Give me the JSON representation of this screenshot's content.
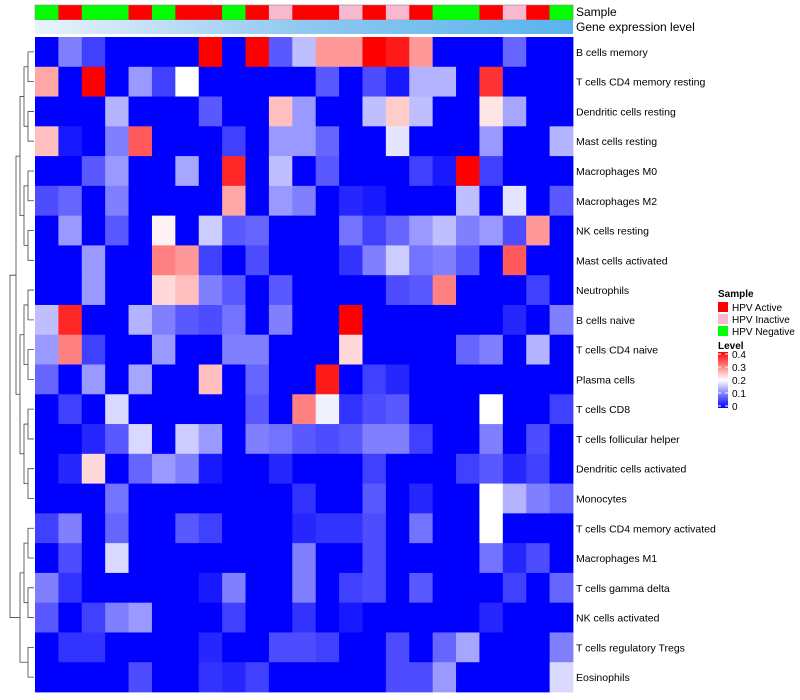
{
  "chart_data": {
    "type": "heatmap",
    "annotation_tracks": [
      {
        "label": "Sample",
        "column_groups": [
          "HPV Negative",
          "HPV Active",
          "HPV Negative",
          "HPV Negative",
          "HPV Active",
          "HPV Negative",
          "HPV Active",
          "HPV Active",
          "HPV Negative",
          "HPV Active",
          "HPV Inactive",
          "HPV Active",
          "HPV Active",
          "HPV Inactive",
          "HPV Active",
          "HPV Inactive",
          "HPV Active",
          "HPV Negative",
          "HPV Negative",
          "HPV Active",
          "HPV Inactive",
          "HPV Active",
          "HPV Negative"
        ]
      },
      {
        "label": "Gene expression level",
        "gradient": [
          "#eaf3fb",
          "#8fc8f0",
          "#58b4ee"
        ]
      }
    ],
    "rows": [
      "B cells memory",
      "T cells CD4 memory resting",
      "Dendritic cells resting",
      "Mast cells resting",
      "Macrophages M0",
      "Macrophages M2",
      "NK cells resting",
      "Mast cells activated",
      "Neutrophils",
      "B cells naive",
      "T cells CD4 naive",
      "Plasma cells",
      "T cells CD8",
      "T cells follicular helper",
      "Dendritic cells activated",
      "Monocytes",
      "T cells CD4 memory activated",
      "Macrophages M1",
      "T cells gamma delta",
      "NK cells activated",
      "T cells regulatory  Tregs",
      "Eosinophils"
    ],
    "values": [
      [
        0.0,
        0.1,
        0.05,
        0.0,
        0.0,
        0.0,
        0.0,
        0.4,
        0.0,
        0.4,
        0.07,
        0.15,
        0.28,
        0.28,
        0.4,
        0.38,
        0.28,
        0.0,
        0.0,
        0.0,
        0.08,
        0.0,
        0.0
      ],
      [
        0.27,
        0.0,
        0.4,
        0.0,
        0.12,
        0.05,
        0.2,
        0.0,
        0.0,
        0.0,
        0.0,
        0.0,
        0.07,
        0.0,
        0.06,
        0.02,
        0.14,
        0.14,
        0.0,
        0.36,
        0.0,
        0.0,
        0.0
      ],
      [
        0.0,
        0.0,
        0.0,
        0.14,
        0.0,
        0.0,
        0.0,
        0.07,
        0.0,
        0.0,
        0.25,
        0.12,
        0.0,
        0.0,
        0.15,
        0.24,
        0.15,
        0.0,
        0.0,
        0.22,
        0.13,
        0.0,
        0.0
      ],
      [
        0.25,
        0.02,
        0.0,
        0.1,
        0.33,
        0.0,
        0.0,
        0.0,
        0.05,
        0.0,
        0.12,
        0.12,
        0.08,
        0.0,
        0.0,
        0.18,
        0.0,
        0.0,
        0.0,
        0.12,
        0.0,
        0.0,
        0.14
      ],
      [
        0.0,
        0.0,
        0.07,
        0.12,
        0.0,
        0.0,
        0.13,
        0.0,
        0.37,
        0.0,
        0.15,
        0.0,
        0.07,
        0.0,
        0.0,
        0.0,
        0.05,
        0.02,
        0.4,
        0.05,
        0.0,
        0.0,
        0.0
      ],
      [
        0.06,
        0.08,
        0.0,
        0.1,
        0.0,
        0.0,
        0.0,
        0.0,
        0.27,
        0.0,
        0.12,
        0.1,
        0.0,
        0.03,
        0.02,
        0.0,
        0.0,
        0.0,
        0.15,
        0.0,
        0.18,
        0.0,
        0.07
      ],
      [
        0.0,
        0.12,
        0.0,
        0.07,
        0.0,
        0.21,
        0.0,
        0.16,
        0.07,
        0.08,
        0.0,
        0.0,
        0.0,
        0.09,
        0.05,
        0.08,
        0.12,
        0.15,
        0.1,
        0.12,
        0.06,
        0.28,
        0.0
      ],
      [
        0.0,
        0.0,
        0.12,
        0.0,
        0.0,
        0.3,
        0.28,
        0.05,
        0.0,
        0.06,
        0.0,
        0.0,
        0.0,
        0.04,
        0.1,
        0.16,
        0.09,
        0.1,
        0.07,
        0.0,
        0.33,
        0.0,
        0.0
      ],
      [
        0.0,
        0.0,
        0.12,
        0.0,
        0.0,
        0.23,
        0.25,
        0.1,
        0.07,
        0.0,
        0.07,
        0.0,
        0.0,
        0.0,
        0.0,
        0.06,
        0.07,
        0.3,
        0.0,
        0.0,
        0.0,
        0.05,
        0.0
      ],
      [
        0.15,
        0.37,
        0.0,
        0.0,
        0.14,
        0.1,
        0.07,
        0.06,
        0.09,
        0.0,
        0.1,
        0.0,
        0.0,
        0.4,
        0.0,
        0.0,
        0.0,
        0.0,
        0.0,
        0.0,
        0.03,
        0.0,
        0.1
      ],
      [
        0.12,
        0.3,
        0.05,
        0.0,
        0.0,
        0.12,
        0.0,
        0.0,
        0.1,
        0.1,
        0.0,
        0.0,
        0.0,
        0.23,
        0.0,
        0.0,
        0.0,
        0.0,
        0.08,
        0.1,
        0.0,
        0.14,
        0.0
      ],
      [
        0.08,
        0.0,
        0.12,
        0.0,
        0.13,
        0.0,
        0.0,
        0.25,
        0.0,
        0.08,
        0.0,
        0.0,
        0.38,
        0.0,
        0.05,
        0.03,
        0.0,
        0.0,
        0.0,
        0.0,
        0.0,
        0.0,
        0.0
      ],
      [
        0.0,
        0.05,
        0.0,
        0.17,
        0.0,
        0.0,
        0.0,
        0.0,
        0.0,
        0.07,
        0.0,
        0.3,
        0.19,
        0.04,
        0.06,
        0.07,
        0.0,
        0.0,
        0.0,
        0.2,
        0.0,
        0.0,
        0.05
      ],
      [
        0.0,
        0.0,
        0.03,
        0.07,
        0.17,
        0.0,
        0.16,
        0.12,
        0.0,
        0.1,
        0.09,
        0.07,
        0.06,
        0.07,
        0.1,
        0.1,
        0.05,
        0.0,
        0.0,
        0.1,
        0.0,
        0.06,
        0.0
      ],
      [
        0.0,
        0.03,
        0.23,
        0.0,
        0.08,
        0.12,
        0.1,
        0.02,
        0.0,
        0.0,
        0.03,
        0.0,
        0.0,
        0.0,
        0.05,
        0.0,
        0.0,
        0.0,
        0.05,
        0.07,
        0.03,
        0.05,
        0.0
      ],
      [
        0.0,
        0.0,
        0.0,
        0.09,
        0.0,
        0.0,
        0.0,
        0.0,
        0.0,
        0.0,
        0.0,
        0.04,
        0.0,
        0.0,
        0.07,
        0.0,
        0.03,
        0.0,
        0.0,
        0.2,
        0.14,
        0.1,
        0.08
      ],
      [
        0.05,
        0.1,
        0.0,
        0.08,
        0.0,
        0.0,
        0.07,
        0.05,
        0.0,
        0.0,
        0.0,
        0.03,
        0.04,
        0.04,
        0.06,
        0.0,
        0.09,
        0.0,
        0.0,
        0.2,
        0.0,
        0.0,
        0.0
      ],
      [
        0.0,
        0.06,
        0.0,
        0.17,
        0.0,
        0.0,
        0.0,
        0.0,
        0.0,
        0.0,
        0.0,
        0.1,
        0.0,
        0.0,
        0.06,
        0.0,
        0.0,
        0.0,
        0.0,
        0.09,
        0.03,
        0.06,
        0.0
      ],
      [
        0.1,
        0.04,
        0.0,
        0.0,
        0.0,
        0.0,
        0.0,
        0.02,
        0.1,
        0.0,
        0.0,
        0.1,
        0.0,
        0.05,
        0.06,
        0.0,
        0.07,
        0.0,
        0.0,
        0.0,
        0.05,
        0.0,
        0.08
      ],
      [
        0.07,
        0.0,
        0.05,
        0.1,
        0.12,
        0.0,
        0.0,
        0.0,
        0.05,
        0.0,
        0.0,
        0.04,
        0.0,
        0.02,
        0.0,
        0.0,
        0.0,
        0.0,
        0.0,
        0.03,
        0.0,
        0.0,
        0.0
      ],
      [
        0.0,
        0.04,
        0.04,
        0.0,
        0.0,
        0.0,
        0.0,
        0.03,
        0.0,
        0.0,
        0.06,
        0.06,
        0.05,
        0.0,
        0.0,
        0.06,
        0.0,
        0.08,
        0.13,
        0.0,
        0.0,
        0.0,
        0.1
      ],
      [
        0.0,
        0.0,
        0.0,
        0.0,
        0.06,
        0.0,
        0.0,
        0.04,
        0.03,
        0.05,
        0.0,
        0.0,
        0.0,
        0.0,
        0.0,
        0.06,
        0.06,
        0.12,
        0.0,
        0.0,
        0.0,
        0.0,
        0.17
      ]
    ],
    "color_scale": {
      "min": 0,
      "max": 0.4,
      "low": "#0000ff",
      "mid": "#ffffff",
      "high": "#ff0000",
      "mid_value": 0.2
    },
    "legend_sample": {
      "title": "Sample",
      "entries": [
        {
          "label": "HPV Active",
          "color": "#ff0000"
        },
        {
          "label": "HPV Inactive",
          "color": "#f7b8d0"
        },
        {
          "label": "HPV Negative",
          "color": "#00ff00"
        }
      ]
    },
    "legend_level": {
      "title": "Level",
      "ticks": [
        "0.4",
        "0.3",
        "0.2",
        "0.1",
        "0"
      ]
    },
    "dendrogram_rows": true,
    "legend_position": "right"
  }
}
